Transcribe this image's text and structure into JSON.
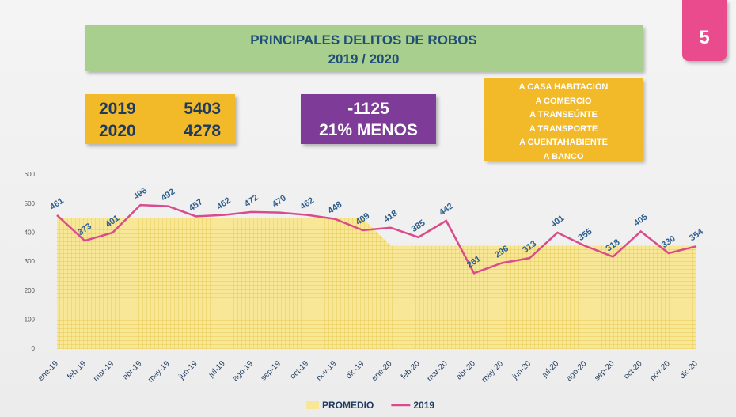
{
  "header": {
    "title": "PRINCIPALES DELITOS DE ROBOS",
    "subtitle": "2019 / 2020",
    "page_number": "5"
  },
  "stats": [
    {
      "year": "2019",
      "total": 5403
    },
    {
      "year": "2020",
      "total": 4278
    }
  ],
  "difference": {
    "value": -1125,
    "label": "21% MENOS"
  },
  "categories_list": [
    "A CASA HABITACIÓN",
    "A COMERCIO",
    "A TRANSEÚNTE",
    "A TRANSPORTE",
    "A CUENTAHABIENTE",
    "A BANCO"
  ],
  "chart_data": {
    "type": "line",
    "categories": [
      "ene-19",
      "feb-19",
      "mar-19",
      "abr-19",
      "may-19",
      "jun-19",
      "jul-19",
      "ago-19",
      "sep-19",
      "oct-19",
      "nov-19",
      "dic-19",
      "ene-20",
      "feb-20",
      "mar-20",
      "abr-20",
      "may-20",
      "jun-20",
      "jul-20",
      "ago-20",
      "sep-20",
      "oct-20",
      "nov-20",
      "dic-20"
    ],
    "series": [
      {
        "name": "PROMEDIO",
        "type": "area",
        "color": "#f5de7c",
        "values": [
          450,
          450,
          450,
          450,
          450,
          450,
          450,
          450,
          450,
          450,
          450,
          450,
          356,
          356,
          356,
          356,
          356,
          356,
          356,
          356,
          356,
          356,
          356,
          356
        ]
      },
      {
        "name": "2019",
        "type": "line",
        "color": "#d94b8b",
        "values": [
          461,
          373,
          401,
          496,
          492,
          457,
          462,
          472,
          470,
          462,
          448,
          409,
          418,
          385,
          442,
          261,
          296,
          313,
          401,
          355,
          318,
          405,
          330,
          354
        ],
        "data_labels": true
      }
    ],
    "ylim": [
      0,
      600
    ],
    "yticks": [
      0,
      100,
      200,
      300,
      400,
      500,
      600
    ],
    "grid": false
  }
}
